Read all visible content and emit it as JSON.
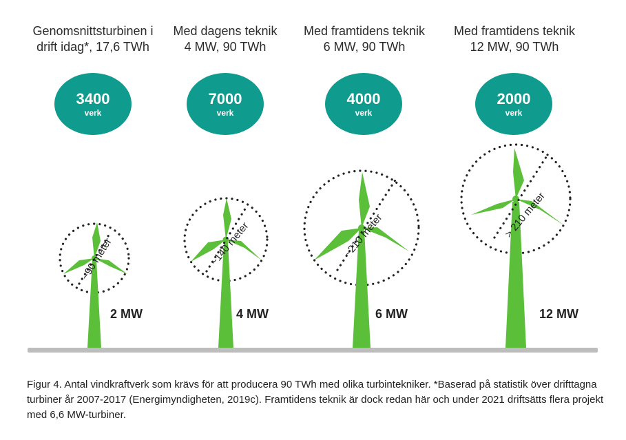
{
  "turbines": [
    {
      "title_lines": [
        "Genomsnittsturbinen i",
        "drift idag*, 17,6 TWh"
      ],
      "count": "3400",
      "count_unit": "verk",
      "diameter_label": "~90 meter",
      "power_label": "2 MW",
      "color": "#5bbf3a"
    },
    {
      "title_lines": [
        "Med dagens teknik",
        "4 MW, 90 TWh"
      ],
      "count": "7000",
      "count_unit": "verk",
      "diameter_label": "~140 meter",
      "power_label": "4 MW",
      "color": "#5bbf3a"
    },
    {
      "title_lines": [
        "Med framtidens teknik",
        "6 MW, 90 TWh"
      ],
      "count": "4000",
      "count_unit": "verk",
      "diameter_label": "~210 meter",
      "power_label": "6 MW",
      "color": "#5bbf3a"
    },
    {
      "title_lines": [
        "Med framtidens teknik",
        "12 MW, 90 TWh"
      ],
      "count": "2000",
      "count_unit": "verk",
      "diameter_label": "> 210 meter",
      "power_label": "12 MW",
      "color": "#5bbf3a"
    }
  ],
  "badge_color": "#0f9b8e",
  "ground_color": "#bdbdbd",
  "caption": "Figur 4. Antal vindkraftverk som krävs för att producera 90 TWh med olika turbintekniker. *Baserad på statistik över drifttagna turbiner år 2007-2017 (Energimyndigheten, 2019c). Framtidens teknik är dock redan här och under 2021 driftsätts flera projekt med 6,6 MW-turbiner."
}
